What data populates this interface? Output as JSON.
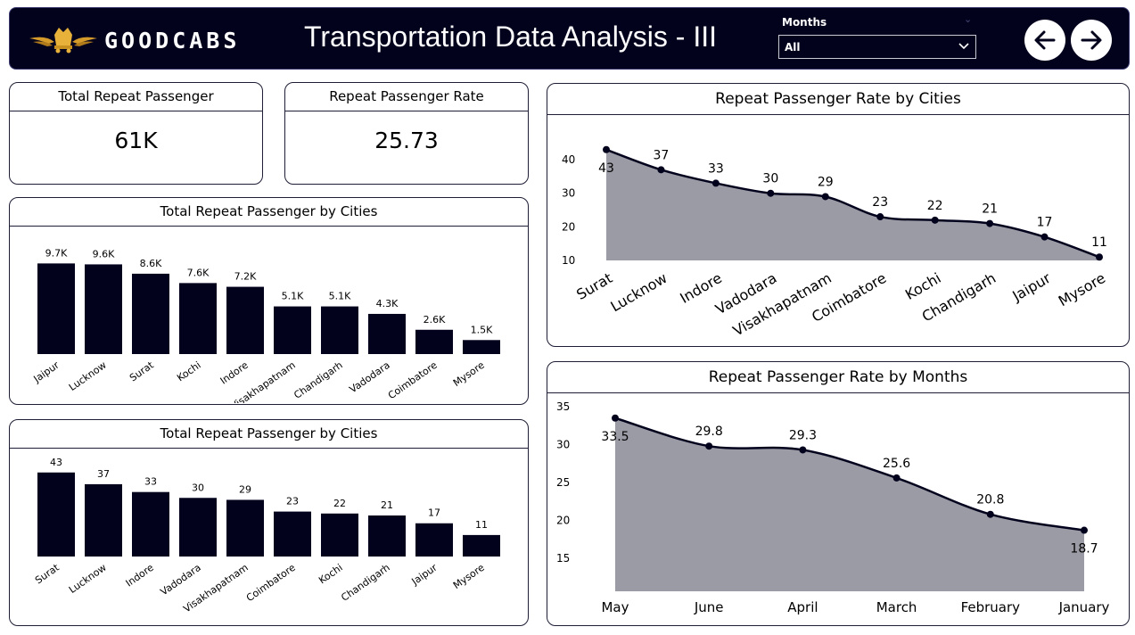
{
  "header": {
    "brand": "GOODCABS",
    "title": "Transportation Data Analysis - III",
    "filter": {
      "label": "Months",
      "value": "All"
    },
    "nav": {
      "back": "back-arrow-icon",
      "forward": "forward-arrow-icon"
    }
  },
  "kpis": {
    "total_repeat_passenger": {
      "label": "Total Repeat Passenger",
      "value": "61K"
    },
    "repeat_passenger_rate": {
      "label": "Repeat Passenger Rate",
      "value": "25.73"
    }
  },
  "colors": {
    "header_bg": "#02021d",
    "bar": "#02021d",
    "area_fill": "#9b9ba6",
    "line": "#02021d"
  },
  "chart_data": [
    {
      "type": "bar",
      "title": "Total Repeat Passenger by Cities",
      "categories": [
        "Jaipur",
        "Lucknow",
        "Surat",
        "Kochi",
        "Indore",
        "Visakhapatnam",
        "Chandigarh",
        "Vadodara",
        "Coimbatore",
        "Mysore"
      ],
      "values": [
        9.7,
        9.6,
        8.6,
        7.6,
        7.2,
        5.1,
        5.1,
        4.3,
        2.6,
        1.5
      ],
      "labels": [
        "9.7K",
        "9.6K",
        "8.6K",
        "7.6K",
        "7.2K",
        "5.1K",
        "5.1K",
        "4.3K",
        "2.6K",
        "1.5K"
      ],
      "ylim": [
        0,
        10.5
      ]
    },
    {
      "type": "bar",
      "title": "Total Repeat Passenger by Cities",
      "categories": [
        "Surat",
        "Lucknow",
        "Indore",
        "Vadodara",
        "Visakhapatnam",
        "Coimbatore",
        "Kochi",
        "Chandigarh",
        "Jaipur",
        "Mysore"
      ],
      "values": [
        43,
        37,
        33,
        30,
        29,
        23,
        22,
        21,
        17,
        11
      ],
      "labels": [
        "43",
        "37",
        "33",
        "30",
        "29",
        "23",
        "22",
        "21",
        "17",
        "11"
      ],
      "ylim": [
        0,
        47
      ]
    },
    {
      "type": "area",
      "title": "Repeat Passenger Rate by Cities",
      "categories": [
        "Surat",
        "Lucknow",
        "Indore",
        "Vadodara",
        "Visakhapatnam",
        "Coimbatore",
        "Kochi",
        "Chandigarh",
        "Jaipur",
        "Mysore"
      ],
      "values": [
        43,
        37,
        33,
        30,
        29,
        23,
        22,
        21,
        17,
        11
      ],
      "labels": [
        "43",
        "37",
        "33",
        "30",
        "29",
        "23",
        "22",
        "21",
        "17",
        "11"
      ],
      "yticks": [
        "10",
        "20",
        "30",
        "40"
      ],
      "ylim": [
        10,
        44
      ]
    },
    {
      "type": "area",
      "title": "Repeat Passenger Rate by Months",
      "categories": [
        "May",
        "June",
        "April",
        "March",
        "February",
        "January"
      ],
      "values": [
        33.5,
        29.8,
        29.3,
        25.6,
        20.8,
        18.7
      ],
      "labels": [
        "33.5",
        "29.8",
        "29.3",
        "25.6",
        "20.8",
        "18.7"
      ],
      "yticks": [
        "15",
        "20",
        "25",
        "30",
        "35"
      ],
      "ylim": [
        15,
        35
      ]
    }
  ]
}
